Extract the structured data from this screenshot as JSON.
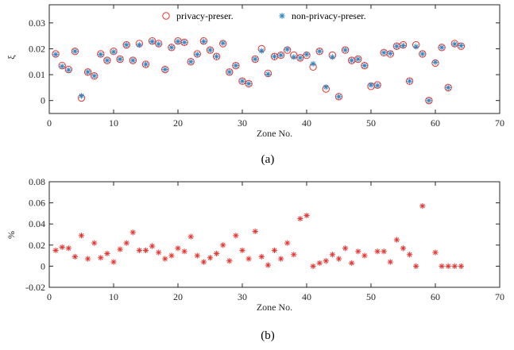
{
  "chart_data": [
    {
      "type": "scatter",
      "caption": "(a)",
      "xlabel": "Zone No.",
      "ylabel": "ξ",
      "xlim": [
        0,
        70
      ],
      "ylim": [
        -0.005,
        0.037
      ],
      "xticks": [
        0,
        10,
        20,
        30,
        40,
        50,
        60,
        70
      ],
      "yticks": [
        0,
        0.01,
        0.02,
        0.03
      ],
      "ytick_labels": [
        "0",
        "0.01",
        "0.02",
        "0.03"
      ],
      "grid": false,
      "legend": "top-center",
      "colors": {
        "privacy": "#e8332f",
        "nonprivacy": "#2e86c1"
      },
      "series": [
        {
          "name": "privacy-preser.",
          "marker": "circle",
          "x": [
            1,
            2,
            3,
            4,
            5,
            6,
            7,
            8,
            9,
            10,
            11,
            12,
            13,
            14,
            15,
            16,
            17,
            18,
            19,
            20,
            21,
            22,
            23,
            24,
            25,
            26,
            27,
            28,
            29,
            30,
            31,
            32,
            33,
            34,
            35,
            36,
            37,
            38,
            39,
            40,
            41,
            42,
            43,
            44,
            45,
            46,
            47,
            48,
            49,
            50,
            51,
            52,
            53,
            54,
            55,
            56,
            57,
            58,
            59,
            60,
            61,
            62,
            63,
            64
          ],
          "y": [
            0.018,
            0.0135,
            0.012,
            0.019,
            0.001,
            0.011,
            0.0095,
            0.018,
            0.0155,
            0.019,
            0.016,
            0.0215,
            0.0155,
            0.022,
            0.014,
            0.023,
            0.022,
            0.012,
            0.0205,
            0.023,
            0.0225,
            0.015,
            0.018,
            0.023,
            0.0195,
            0.017,
            0.022,
            0.011,
            0.0135,
            0.0075,
            0.0065,
            0.016,
            0.02,
            0.0105,
            0.017,
            0.0175,
            0.0195,
            0.0175,
            0.0165,
            0.0175,
            0.013,
            0.019,
            0.0045,
            0.0175,
            0.0015,
            0.0195,
            0.0155,
            0.016,
            0.0135,
            0.0055,
            0.006,
            0.0185,
            0.018,
            0.021,
            0.0215,
            0.0075,
            0.0215,
            0.018,
            0,
            0.0145,
            0.0205,
            0.005,
            0.022,
            0.021
          ]
        },
        {
          "name": "non-privacy-preser.",
          "marker": "asterisk",
          "x": [
            1,
            2,
            3,
            4,
            5,
            6,
            7,
            8,
            9,
            10,
            11,
            12,
            13,
            14,
            15,
            16,
            17,
            18,
            19,
            20,
            21,
            22,
            23,
            24,
            25,
            26,
            27,
            28,
            29,
            30,
            31,
            32,
            33,
            34,
            35,
            36,
            37,
            38,
            39,
            40,
            41,
            42,
            43,
            44,
            45,
            46,
            47,
            48,
            49,
            50,
            51,
            52,
            53,
            54,
            55,
            56,
            57,
            58,
            59,
            60,
            61,
            62,
            63,
            64
          ],
          "y": [
            0.0178,
            0.0132,
            0.0118,
            0.019,
            0.0018,
            0.011,
            0.0095,
            0.0178,
            0.0155,
            0.0188,
            0.016,
            0.0215,
            0.0155,
            0.0215,
            0.014,
            0.0228,
            0.0218,
            0.012,
            0.0205,
            0.0228,
            0.0225,
            0.015,
            0.0178,
            0.0228,
            0.0195,
            0.017,
            0.0222,
            0.011,
            0.0135,
            0.0075,
            0.0065,
            0.016,
            0.0192,
            0.0102,
            0.017,
            0.0175,
            0.0198,
            0.0168,
            0.0165,
            0.0178,
            0.0142,
            0.019,
            0.0052,
            0.0168,
            0.0015,
            0.0195,
            0.0155,
            0.016,
            0.0135,
            0.006,
            0.0058,
            0.0185,
            0.0182,
            0.021,
            0.0212,
            0.0075,
            0.0208,
            0.018,
            0,
            0.0148,
            0.0205,
            0.005,
            0.0218,
            0.0212
          ]
        }
      ]
    },
    {
      "type": "scatter",
      "caption": "(b)",
      "xlabel": "Zone No.",
      "ylabel": "%",
      "xlim": [
        0,
        70
      ],
      "ylim": [
        -0.02,
        0.08
      ],
      "xticks": [
        0,
        10,
        20,
        30,
        40,
        50,
        60,
        70
      ],
      "yticks": [
        -0.02,
        0,
        0.02,
        0.04,
        0.06,
        0.08
      ],
      "ytick_labels": [
        "-0.02",
        "0",
        "0.02",
        "0.04",
        "0.06",
        "0.08"
      ],
      "grid": false,
      "colors": {
        "points": "#e8332f"
      },
      "series": [
        {
          "marker": "asterisk",
          "x": [
            1,
            2,
            3,
            4,
            5,
            6,
            7,
            8,
            9,
            10,
            11,
            12,
            13,
            14,
            15,
            16,
            17,
            18,
            19,
            20,
            21,
            22,
            23,
            24,
            25,
            26,
            27,
            28,
            29,
            30,
            31,
            32,
            33,
            34,
            35,
            36,
            37,
            38,
            39,
            40,
            41,
            42,
            43,
            44,
            45,
            46,
            47,
            48,
            49,
            51,
            52,
            53,
            54,
            55,
            56,
            57,
            58,
            60,
            61,
            62,
            63,
            64
          ],
          "y": [
            0.015,
            0.018,
            0.017,
            0.009,
            0.029,
            0.007,
            0.022,
            0.008,
            0.012,
            0.004,
            0.016,
            0.022,
            0.032,
            0.015,
            0.015,
            0.019,
            0.013,
            0.007,
            0.01,
            0.017,
            0.014,
            0.028,
            0.01,
            0.004,
            0.008,
            0.012,
            0.02,
            0.005,
            0.029,
            0.015,
            0.007,
            0.033,
            0.009,
            0.001,
            0.015,
            0.007,
            0.022,
            0.011,
            0.045,
            0.048,
            0,
            0.003,
            0.005,
            0.011,
            0.007,
            0.017,
            0.003,
            0.014,
            0.01,
            0.014,
            0.014,
            0.004,
            0.025,
            0.017,
            0.011,
            0,
            0.057,
            0.013,
            0,
            0.0,
            0.0,
            0.0
          ]
        }
      ]
    }
  ]
}
